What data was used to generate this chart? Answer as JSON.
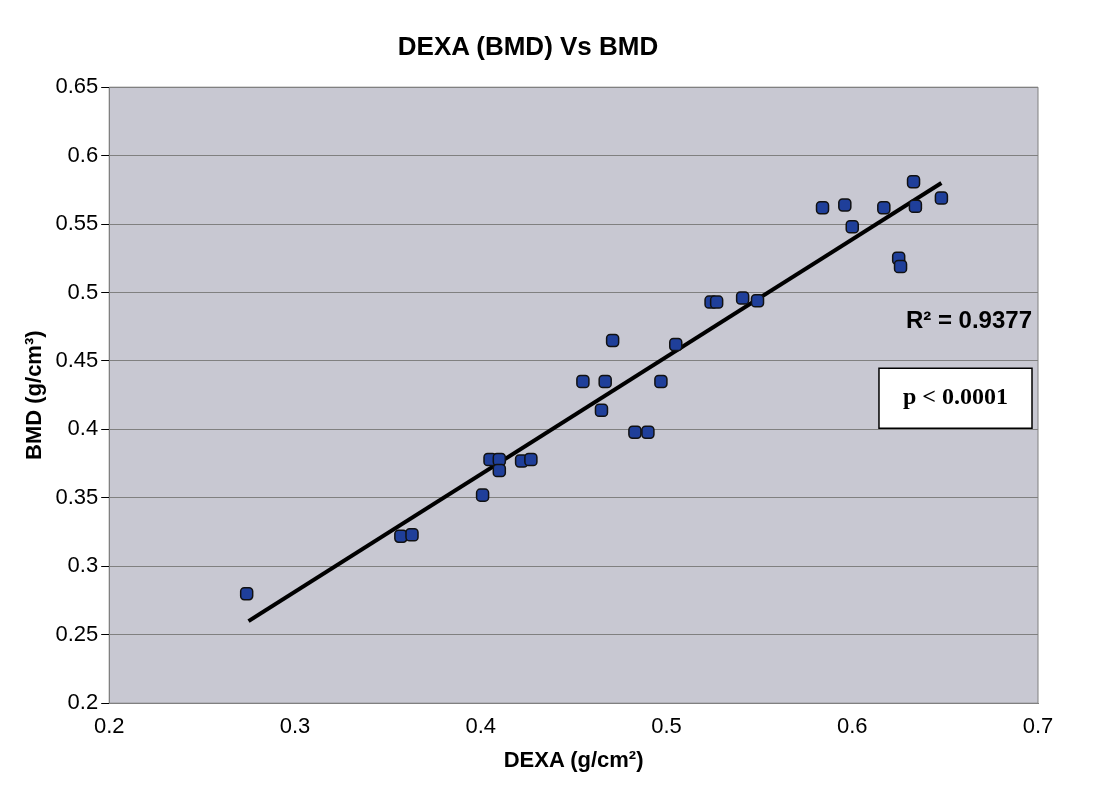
{
  "chart_data": {
    "type": "scatter",
    "title": "DEXA (BMD) Vs BMD",
    "xlabel": "DEXA (g/cm²)",
    "ylabel": "BMD (g/cm³)",
    "xlim": [
      0.2,
      0.7
    ],
    "xticks": [
      0.2,
      0.3,
      0.4,
      0.5,
      0.6,
      0.7
    ],
    "ylim": [
      0.2,
      0.65
    ],
    "yticks": [
      0.2,
      0.25,
      0.3,
      0.35,
      0.4,
      0.45,
      0.5,
      0.55,
      0.6,
      0.65
    ],
    "grid": "y",
    "legend": false,
    "annotations": [
      "R² = 0.9377",
      "p < 0.0001"
    ],
    "series": [
      {
        "color": "#1f3f9a",
        "marker": "square",
        "x": [
          0.274,
          0.357,
          0.363,
          0.401,
          0.405,
          0.41,
          0.41,
          0.422,
          0.427,
          0.455,
          0.467,
          0.465,
          0.471,
          0.497,
          0.483,
          0.49,
          0.505,
          0.524,
          0.527,
          0.541,
          0.549,
          0.584,
          0.596,
          0.6,
          0.617,
          0.625,
          0.626,
          0.633,
          0.634,
          0.648
        ],
        "values": [
          0.28,
          0.322,
          0.323,
          0.352,
          0.378,
          0.378,
          0.37,
          0.377,
          0.378,
          0.435,
          0.435,
          0.414,
          0.465,
          0.435,
          0.398,
          0.398,
          0.462,
          0.493,
          0.493,
          0.496,
          0.494,
          0.562,
          0.564,
          0.548,
          0.562,
          0.525,
          0.519,
          0.581,
          0.563,
          0.569
        ]
      },
      {
        "type": "line",
        "color": "#000000",
        "marker": "none",
        "x": [
          0.275,
          0.648
        ],
        "values": [
          0.26,
          0.58
        ]
      }
    ]
  }
}
